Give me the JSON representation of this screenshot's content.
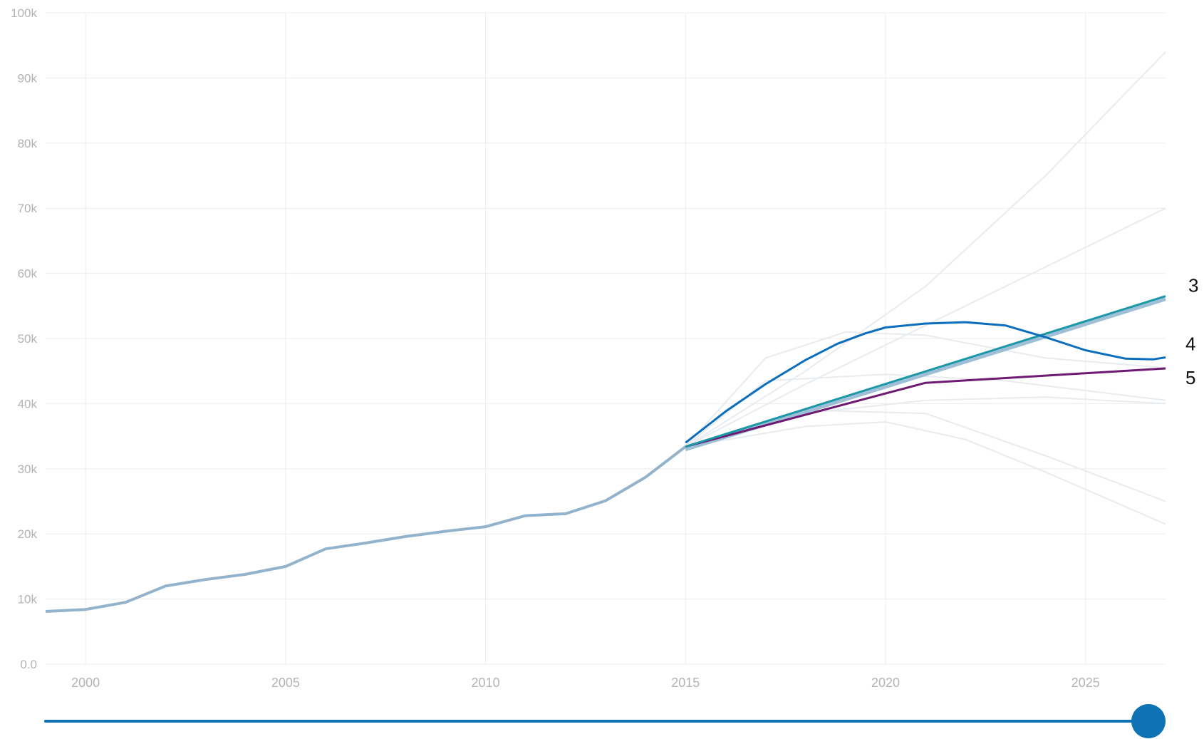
{
  "chart_data": {
    "type": "line",
    "xlim": [
      1999,
      2027
    ],
    "ylim": [
      0,
      100000
    ],
    "grid": true,
    "y_ticks": [
      "0.0",
      "10k",
      "20k",
      "30k",
      "40k",
      "50k",
      "60k",
      "70k",
      "80k",
      "90k",
      "100k"
    ],
    "y_tick_values": [
      0,
      10000,
      20000,
      30000,
      40000,
      50000,
      60000,
      70000,
      80000,
      90000,
      100000
    ],
    "x_ticks": [
      "2000",
      "2005",
      "2010",
      "2015",
      "2020",
      "2025"
    ],
    "x_tick_values": [
      2000,
      2005,
      2010,
      2015,
      2020,
      2025
    ],
    "historical": {
      "color": "#93b3cc",
      "x": [
        1999,
        2000,
        2001,
        2002,
        2003,
        2004,
        2005,
        2006,
        2007,
        2008,
        2009,
        2010,
        2011,
        2012,
        2013,
        2014,
        2015
      ],
      "y": [
        8100,
        8400,
        9500,
        12000,
        13000,
        13800,
        15000,
        17700,
        18600,
        19600,
        20400,
        21100,
        22800,
        23100,
        25100,
        28700,
        33400
      ]
    },
    "background_series": [
      {
        "x": [
          2015,
          2018,
          2021,
          2024,
          2027
        ],
        "y": [
          33400,
          45000,
          58000,
          75000,
          94000
        ]
      },
      {
        "x": [
          2015,
          2018,
          2021,
          2024,
          2027
        ],
        "y": [
          33400,
          43000,
          52000,
          61000,
          70000
        ]
      },
      {
        "x": [
          2015,
          2017,
          2019,
          2021,
          2024,
          2027
        ],
        "y": [
          33400,
          47000,
          51000,
          50500,
          47000,
          45500
        ]
      },
      {
        "x": [
          2015,
          2017,
          2020,
          2023,
          2027
        ],
        "y": [
          33400,
          43500,
          44500,
          43500,
          40500
        ]
      },
      {
        "x": [
          2015,
          2018,
          2021,
          2024,
          2027
        ],
        "y": [
          33400,
          38500,
          40500,
          41000,
          40000
        ]
      },
      {
        "x": [
          2015,
          2018,
          2020,
          2022,
          2024,
          2027
        ],
        "y": [
          33400,
          36500,
          37200,
          34500,
          29500,
          21500
        ]
      },
      {
        "x": [
          2015,
          2018,
          2021,
          2024,
          2027
        ],
        "y": [
          33400,
          39000,
          38500,
          32000,
          25000
        ]
      }
    ],
    "series": [
      {
        "name": "3",
        "color": "#1a98a8",
        "shadow_color": "#9fbfd6",
        "x": [
          2015,
          2027
        ],
        "y": [
          33400,
          56500
        ]
      },
      {
        "name": "4",
        "color": "#0b6ebd",
        "x": [
          2015,
          2016,
          2017,
          2018,
          2018.8,
          2019.5,
          2020,
          2021,
          2022,
          2023,
          2024,
          2025,
          2026,
          2026.7,
          2027
        ],
        "y": [
          34000,
          38800,
          43000,
          46700,
          49200,
          50800,
          51700,
          52300,
          52500,
          52000,
          50200,
          48200,
          46900,
          46800,
          47100
        ]
      },
      {
        "name": "5",
        "color": "#6e1a72",
        "x": [
          2015,
          2021,
          2027
        ],
        "y": [
          33400,
          43200,
          45400
        ]
      }
    ]
  },
  "slider": {
    "value_fraction": 1.0,
    "track_color": "#0e72b5",
    "handle_color": "#0e72b5"
  }
}
